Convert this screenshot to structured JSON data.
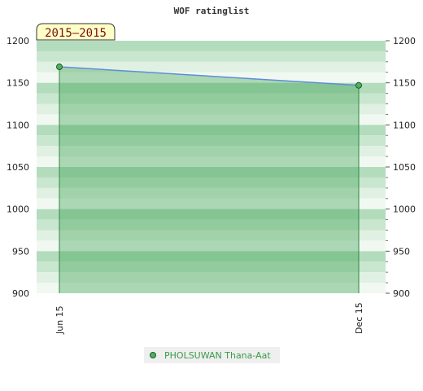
{
  "chart_data": {
    "type": "line",
    "title": "WOF ratinglist",
    "period_label": "2015–2015",
    "xlabel": "",
    "ylabel": "",
    "ylim": [
      900,
      1200
    ],
    "y_ticks": [
      900,
      950,
      1000,
      1050,
      1100,
      1150,
      1200
    ],
    "x": [
      "Jun 15",
      "Dec 15"
    ],
    "series": [
      {
        "name": "PHOLSUWAN Thana-Aat",
        "values": [
          1169,
          1147
        ]
      }
    ],
    "band_colors": [
      "#f1f8f2",
      "#e0f0e3",
      "#c9e6cf",
      "#b3dcbd"
    ],
    "fill_color": "#3aa04e",
    "line_color": "#5b8fd9",
    "marker_color": "#4fb060",
    "legend_position": "bottom-center",
    "grid": true
  }
}
